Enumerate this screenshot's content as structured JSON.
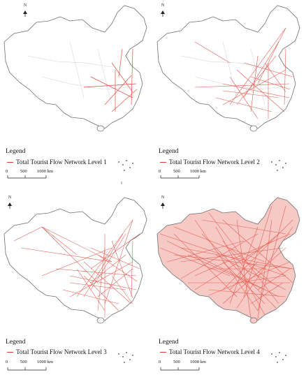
{
  "figure": {
    "panels": [
      {
        "id": "level-1",
        "legend_title": "Legend",
        "legend_item": "Total Tourist Flow Network Level 1",
        "scale_labels": [
          "0",
          "500",
          "1000 km"
        ],
        "north_label": "N",
        "flow_intensity": 1
      },
      {
        "id": "level-2",
        "legend_title": "Legend",
        "legend_item": "Total Tourist Flow Network Level 2",
        "scale_labels": [
          "0",
          "500",
          "1000 km"
        ],
        "north_label": "N",
        "flow_intensity": 2
      },
      {
        "id": "level-3",
        "legend_title": "Legend",
        "legend_item": "Total Tourist Flow Network Level 3",
        "scale_labels": [
          "0",
          "500",
          "1000 km"
        ],
        "north_label": "N",
        "flow_intensity": 3
      },
      {
        "id": "level-4",
        "legend_title": "Legend",
        "legend_item": "Total Tourist Flow Network Level 4",
        "scale_labels": [
          "0",
          "500",
          "1000 km"
        ],
        "north_label": "N",
        "flow_intensity": 4
      }
    ],
    "colors": {
      "flow_line": "#e23b2e",
      "boundary": "#6f6f6f",
      "province": "#cfcfcf"
    },
    "icons": [
      "north-arrow-icon",
      "scale-bar-icon",
      "south-china-sea-inset"
    ]
  }
}
